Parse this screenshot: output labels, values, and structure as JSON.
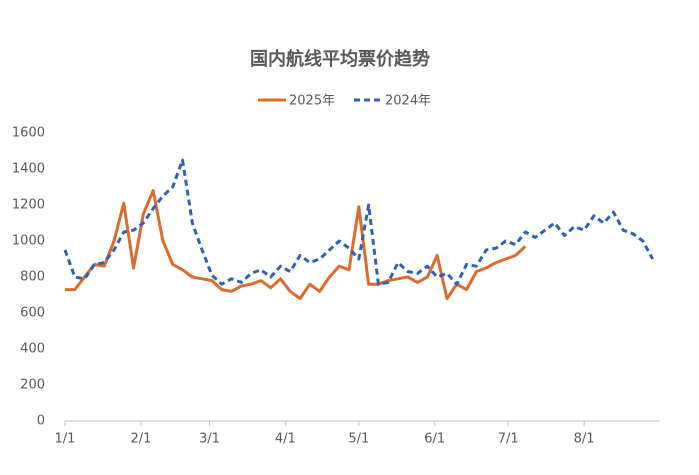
{
  "chart_data": {
    "type": "line",
    "title": "国内航线平均票价趋势",
    "x": [
      0,
      4,
      8,
      12,
      16,
      20,
      24,
      28,
      32,
      36,
      40,
      44,
      48,
      52,
      56,
      60,
      64,
      68,
      72,
      76,
      80,
      84,
      88,
      92,
      96,
      100,
      104,
      108,
      112,
      116,
      120,
      124,
      128,
      132,
      136,
      140,
      144,
      148,
      152,
      156,
      160,
      164,
      168,
      172,
      176,
      180,
      184,
      188,
      192,
      196,
      200,
      204,
      208,
      212,
      216,
      220,
      224,
      228,
      232,
      236,
      240
    ],
    "xlim": [
      0,
      243
    ],
    "xticks": [
      {
        "value": 0,
        "label": "1/1"
      },
      {
        "value": 31,
        "label": "2/1"
      },
      {
        "value": 59,
        "label": "3/1"
      },
      {
        "value": 90,
        "label": "4/1"
      },
      {
        "value": 120,
        "label": "5/1"
      },
      {
        "value": 151,
        "label": "6/1"
      },
      {
        "value": 181,
        "label": "7/1"
      },
      {
        "value": 212,
        "label": "8/1"
      }
    ],
    "ylim": [
      0,
      1600
    ],
    "yticks": [
      0,
      200,
      400,
      600,
      800,
      1000,
      1200,
      1400,
      1600
    ],
    "legend": "top",
    "series": [
      {
        "name": "2025年",
        "color": "#dc6b2c",
        "dash": false,
        "values": [
          730,
          730,
          800,
          870,
          860,
          1000,
          1210,
          850,
          1150,
          1280,
          1000,
          870,
          840,
          800,
          790,
          780,
          730,
          720,
          750,
          760,
          780,
          740,
          790,
          720,
          680,
          760,
          720,
          800,
          860,
          840,
          1190,
          760,
          760,
          780,
          790,
          800,
          770,
          800,
          920,
          680,
          760,
          730,
          830,
          850,
          880,
          900,
          920,
          970,
          null,
          null,
          null,
          null,
          null,
          null,
          null,
          null,
          null,
          null,
          null,
          null,
          null
        ]
      },
      {
        "name": "2024年",
        "color": "#2e62b3",
        "dash": true,
        "values": [
          950,
          800,
          790,
          870,
          880,
          950,
          1050,
          1060,
          1100,
          1180,
          1250,
          1300,
          1450,
          1100,
          950,
          810,
          760,
          790,
          770,
          820,
          840,
          800,
          860,
          830,
          920,
          880,
          900,
          950,
          1000,
          960,
          900,
          1200,
          760,
          770,
          880,
          830,
          820,
          860,
          800,
          820,
          760,
          870,
          860,
          950,
          960,
          1000,
          980,
          1050,
          1020,
          1060,
          1100,
          1030,
          1080,
          1060,
          1140,
          1100,
          1160,
          1060,
          1040,
          1000,
          900
        ]
      }
    ]
  }
}
